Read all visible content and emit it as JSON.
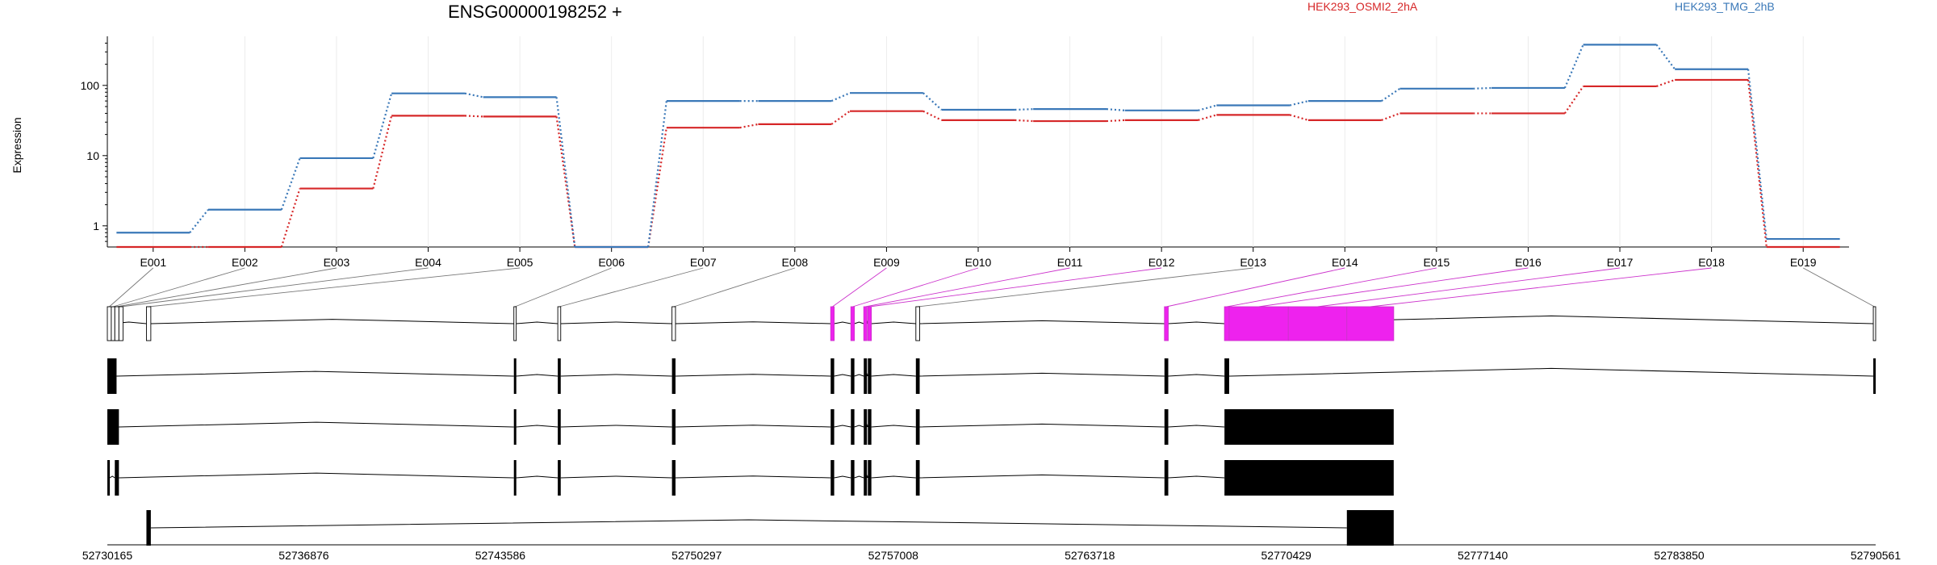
{
  "chart_data": {
    "type": "line",
    "title": "ENSG00000198252 +",
    "ylabel": "Expression",
    "yscale": "log",
    "ylim": [
      0.5,
      500
    ],
    "yticks": [
      {
        "value": 1,
        "label": "1"
      },
      {
        "value": 10,
        "label": "10"
      },
      {
        "value": 100,
        "label": "100"
      }
    ],
    "categories": [
      "E001",
      "E002",
      "E003",
      "E004",
      "E005",
      "E006",
      "E007",
      "E008",
      "E009",
      "E010",
      "E011",
      "E012",
      "E013",
      "E014",
      "E015",
      "E016",
      "E017",
      "E018",
      "E019"
    ],
    "series": [
      {
        "name": "HEK293_OSMI2_2hA",
        "color": "#d62728",
        "values": [
          0.5,
          0.5,
          3.4,
          37,
          36,
          0.5,
          25,
          28,
          43,
          32,
          31,
          32,
          38,
          32,
          40,
          40,
          97,
          120,
          0.5
        ]
      },
      {
        "name": "HEK293_TMG_2hB",
        "color": "#3a78b8",
        "values": [
          0.8,
          1.7,
          9.2,
          77,
          68,
          0.5,
          60,
          60,
          78,
          45,
          46,
          44,
          52,
          60,
          90,
          92,
          380,
          170,
          0.65
        ]
      }
    ],
    "highlight_color": "#cc33cc",
    "highlight_fill": "#ee22ee",
    "highlight_exons": [
      "E009",
      "E010",
      "E011",
      "E012",
      "E014",
      "E015",
      "E016",
      "E017",
      "E018"
    ],
    "genomic_axis": {
      "range": [
        52730165,
        52790561
      ],
      "ticks": [
        "52730165",
        "52736876",
        "52743586",
        "52750297",
        "52757008",
        "52763718",
        "52770429",
        "52777140",
        "52783850",
        "52790561"
      ]
    },
    "exons": [
      {
        "id": "E001",
        "start": 52730165,
        "end": 52730300
      },
      {
        "id": "E002",
        "start": 52730300,
        "end": 52730420
      },
      {
        "id": "E003",
        "start": 52730420,
        "end": 52730560
      },
      {
        "id": "E004",
        "start": 52730560,
        "end": 52730700
      },
      {
        "id": "E005",
        "start": 52731500,
        "end": 52731650
      },
      {
        "id": "E006",
        "start": 52744050,
        "end": 52744130
      },
      {
        "id": "E007",
        "start": 52745550,
        "end": 52745650
      },
      {
        "id": "E008",
        "start": 52749450,
        "end": 52749570
      },
      {
        "id": "E009",
        "start": 52754870,
        "end": 52754990
      },
      {
        "id": "E010",
        "start": 52755560,
        "end": 52755680
      },
      {
        "id": "E011",
        "start": 52756000,
        "end": 52756110
      },
      {
        "id": "E012",
        "start": 52756140,
        "end": 52756260
      },
      {
        "id": "E013",
        "start": 52757780,
        "end": 52757910
      },
      {
        "id": "E014",
        "start": 52766270,
        "end": 52766400
      },
      {
        "id": "E015",
        "start": 52768320,
        "end": 52768480
      },
      {
        "id": "E016",
        "start": 52768480,
        "end": 52770500
      },
      {
        "id": "E017",
        "start": 52770500,
        "end": 52772500
      },
      {
        "id": "E018",
        "start": 52772500,
        "end": 52774100
      },
      {
        "id": "E019",
        "start": 52790480,
        "end": 52790561
      }
    ],
    "transcripts": [
      {
        "blocks": [
          [
            52730165,
            52730480
          ],
          [
            52744050,
            52744130
          ],
          [
            52745550,
            52745650
          ],
          [
            52749450,
            52749570
          ],
          [
            52754870,
            52754990
          ],
          [
            52755560,
            52755680
          ],
          [
            52756000,
            52756110
          ],
          [
            52756140,
            52756260
          ],
          [
            52757780,
            52757910
          ],
          [
            52766270,
            52766400
          ],
          [
            52768320,
            52768480
          ],
          [
            52790480,
            52790561
          ]
        ]
      },
      {
        "blocks": [
          [
            52730165,
            52730560
          ],
          [
            52744050,
            52744130
          ],
          [
            52745550,
            52745650
          ],
          [
            52749450,
            52749570
          ],
          [
            52754870,
            52754990
          ],
          [
            52755560,
            52755680
          ],
          [
            52756000,
            52756110
          ],
          [
            52756140,
            52756260
          ],
          [
            52757780,
            52757910
          ],
          [
            52766270,
            52766400
          ],
          [
            52768320,
            52774100
          ]
        ]
      },
      {
        "blocks": [
          [
            52730165,
            52730250
          ],
          [
            52730420,
            52730560
          ],
          [
            52744050,
            52744130
          ],
          [
            52745550,
            52745650
          ],
          [
            52749450,
            52749570
          ],
          [
            52754870,
            52754990
          ],
          [
            52755560,
            52755680
          ],
          [
            52756000,
            52756110
          ],
          [
            52756140,
            52756260
          ],
          [
            52757780,
            52757910
          ],
          [
            52766270,
            52766400
          ],
          [
            52768320,
            52774100
          ]
        ]
      },
      {
        "blocks": [
          [
            52731500,
            52731650
          ],
          [
            52772500,
            52774100
          ]
        ]
      }
    ]
  }
}
